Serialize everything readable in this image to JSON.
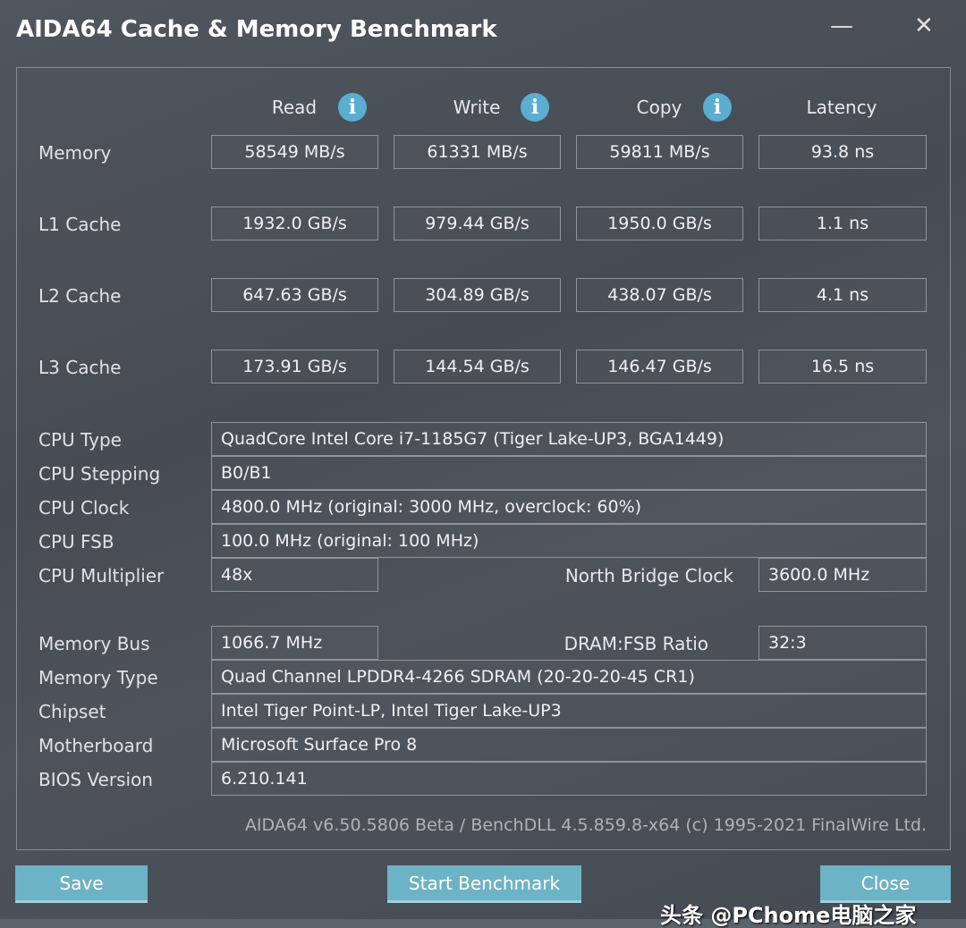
{
  "window": {
    "title": "AIDA64 Cache & Memory Benchmark",
    "minimize": "—",
    "close": "✕"
  },
  "headers": [
    "Read",
    "Write",
    "Copy",
    "Latency"
  ],
  "info_icon": "info-icon",
  "bench": [
    {
      "label": "Memory",
      "values": [
        "58549 MB/s",
        "61331 MB/s",
        "59811 MB/s",
        "93.8 ns"
      ]
    },
    {
      "label": "L1 Cache",
      "values": [
        "1932.0 GB/s",
        "979.44 GB/s",
        "1950.0 GB/s",
        "1.1 ns"
      ]
    },
    {
      "label": "L2 Cache",
      "values": [
        "647.63 GB/s",
        "304.89 GB/s",
        "438.07 GB/s",
        "4.1 ns"
      ]
    },
    {
      "label": "L3 Cache",
      "values": [
        "173.91 GB/s",
        "144.54 GB/s",
        "146.47 GB/s",
        "16.5 ns"
      ]
    }
  ],
  "cpu": {
    "type_label": "CPU Type",
    "type": "QuadCore Intel Core i7-1185G7  (Tiger Lake-UP3, BGA1449)",
    "stepping_label": "CPU Stepping",
    "stepping": "B0/B1",
    "clock_label": "CPU Clock",
    "clock": "4800.0 MHz  (original: 3000 MHz, overclock: 60%)",
    "fsb_label": "CPU FSB",
    "fsb": "100.0 MHz  (original: 100 MHz)",
    "mult_label": "CPU Multiplier",
    "mult": "48x",
    "nb_label": "North Bridge Clock",
    "nb": "3600.0 MHz"
  },
  "mem": {
    "bus_label": "Memory Bus",
    "bus": "1066.7 MHz",
    "ratio_label": "DRAM:FSB Ratio",
    "ratio": "32:3",
    "type_label": "Memory Type",
    "type": "Quad Channel LPDDR4-4266 SDRAM  (20-20-20-45 CR1)",
    "chipset_label": "Chipset",
    "chipset": "Intel Tiger Point-LP, Intel Tiger Lake-UP3",
    "mb_label": "Motherboard",
    "mb": "Microsoft Surface Pro 8",
    "bios_label": "BIOS Version",
    "bios": "6.210.141"
  },
  "footer": "AIDA64 v6.50.5806 Beta / BenchDLL 4.5.859.8-x64  (c) 1995-2021 FinalWire Ltd.",
  "buttons": {
    "save": "Save",
    "start": "Start Benchmark",
    "close": "Close"
  },
  "watermark": "头条 @PChome电脑之家"
}
